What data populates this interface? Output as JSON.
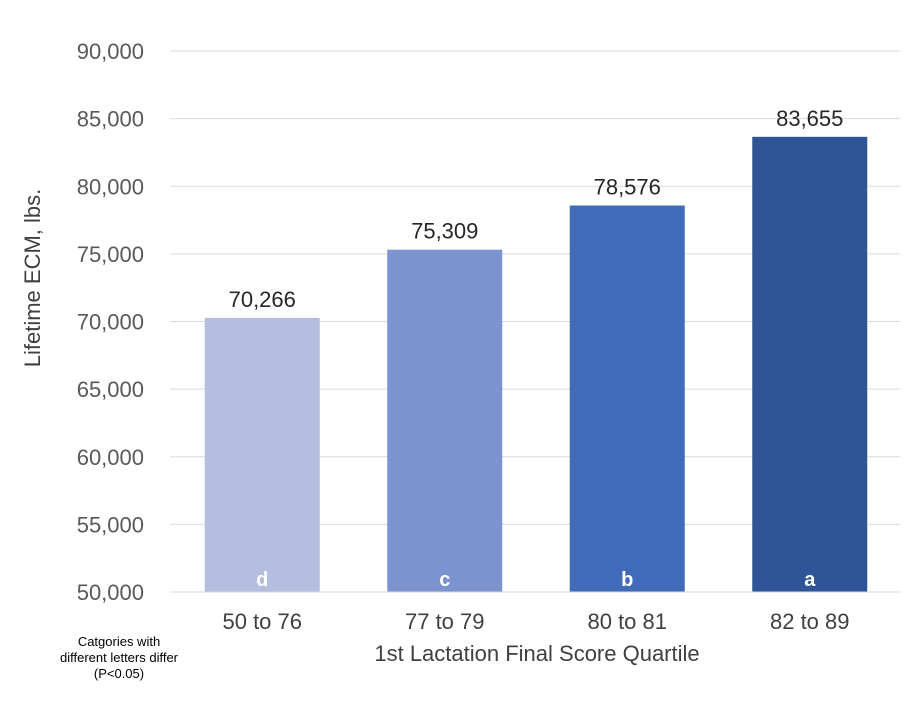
{
  "chart_data": {
    "type": "bar",
    "categories": [
      "50 to 76",
      "77 to 79",
      "80 to 81",
      "82 to 89"
    ],
    "values": [
      70266,
      75309,
      78576,
      83655
    ],
    "data_labels": [
      "70,266",
      "75,309",
      "78,576",
      "83,655"
    ],
    "letters": [
      "d",
      "c",
      "b",
      "a"
    ],
    "bar_colors": [
      "#b4bfdf",
      "#7b93cf",
      "#3f6bb8",
      "#2f5597"
    ],
    "xlabel": "1st Lactation Final Score Quartile",
    "ylabel": "Lifetime ECM, lbs.",
    "ylim": [
      50000,
      90000
    ],
    "yticks": [
      50000,
      55000,
      60000,
      65000,
      70000,
      75000,
      80000,
      85000,
      90000
    ],
    "ytick_labels": [
      "50,000",
      "55,000",
      "60,000",
      "65,000",
      "70,000",
      "75,000",
      "80,000",
      "85,000",
      "90,000"
    ],
    "grid": true,
    "legend": "none"
  },
  "note": {
    "lines": [
      "Catgories with",
      "different letters differ",
      "(P<0.05)"
    ]
  }
}
